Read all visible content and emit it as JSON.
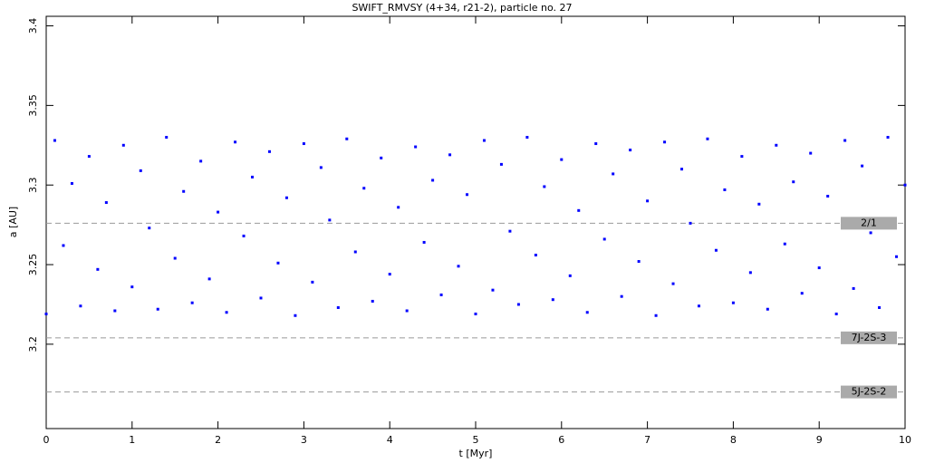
{
  "chart_data": {
    "type": "scatter",
    "title": "SWIFT_RMVSY (4+34, r21-2), particle no. 27",
    "x_label": "t [Myr]",
    "y_label": "a [AU]",
    "xlim": [
      0,
      10
    ],
    "xticks": [
      0,
      1,
      2,
      3,
      4,
      5,
      6,
      7,
      8,
      9,
      10
    ],
    "ylim": [
      3.147,
      3.406
    ],
    "yticks": [
      3.2,
      3.25,
      3.3,
      3.35,
      3.4
    ],
    "series": [
      {
        "color": "#0000ff",
        "x": [
          0,
          0.1,
          0.2,
          0.3,
          0.4,
          0.5,
          0.6,
          0.7,
          0.8,
          0.9,
          1,
          1.1,
          1.2,
          1.3,
          1.4,
          1.5,
          1.6,
          1.7,
          1.8,
          1.9,
          2,
          2.1,
          2.2,
          2.3,
          2.4,
          2.5,
          2.6,
          2.7,
          2.8,
          2.9,
          3,
          3.1,
          3.2,
          3.3,
          3.4,
          3.5,
          3.6,
          3.7,
          3.8,
          3.9,
          4,
          4.1,
          4.2,
          4.3,
          4.4,
          4.5,
          4.6,
          4.7,
          4.8,
          4.9,
          5,
          5.1,
          5.2,
          5.3,
          5.4,
          5.5,
          5.6,
          5.7,
          5.8,
          5.9,
          6,
          6.1,
          6.2,
          6.3,
          6.4,
          6.5,
          6.6,
          6.7,
          6.8,
          6.9,
          7,
          7.1,
          7.2,
          7.3,
          7.4,
          7.5,
          7.6,
          7.7,
          7.8,
          7.9,
          8,
          8.1,
          8.2,
          8.3,
          8.4,
          8.5,
          8.6,
          8.7,
          8.8,
          8.9,
          9,
          9.1,
          9.2,
          9.3,
          9.4,
          9.5,
          9.6,
          9.7,
          9.8,
          9.9,
          10
        ],
        "values": [
          3.219,
          3.328,
          3.262,
          3.301,
          3.224,
          3.318,
          3.247,
          3.289,
          3.221,
          3.325,
          3.236,
          3.309,
          3.273,
          3.222,
          3.33,
          3.254,
          3.296,
          3.226,
          3.315,
          3.241,
          3.283,
          3.22,
          3.327,
          3.268,
          3.305,
          3.229,
          3.321,
          3.251,
          3.292,
          3.218,
          3.326,
          3.239,
          3.311,
          3.278,
          3.223,
          3.329,
          3.258,
          3.298,
          3.227,
          3.317,
          3.244,
          3.286,
          3.221,
          3.324,
          3.264,
          3.303,
          3.231,
          3.319,
          3.249,
          3.294,
          3.219,
          3.328,
          3.234,
          3.313,
          3.271,
          3.225,
          3.33,
          3.256,
          3.299,
          3.228,
          3.316,
          3.243,
          3.284,
          3.22,
          3.326,
          3.266,
          3.307,
          3.23,
          3.322,
          3.252,
          3.29,
          3.218,
          3.327,
          3.238,
          3.31,
          3.276,
          3.224,
          3.329,
          3.259,
          3.297,
          3.226,
          3.318,
          3.245,
          3.288,
          3.222,
          3.325,
          3.263,
          3.302,
          3.232,
          3.32,
          3.248,
          3.293,
          3.219,
          3.328,
          3.235,
          3.312,
          3.27,
          3.223,
          3.33,
          3.255,
          3.3
        ]
      }
    ],
    "annotations": [
      {
        "label": "2/1",
        "value": 3.276
      },
      {
        "label": "7J-2S-3",
        "value": 3.204
      },
      {
        "label": "5J-2S-2",
        "value": 3.17
      }
    ]
  }
}
